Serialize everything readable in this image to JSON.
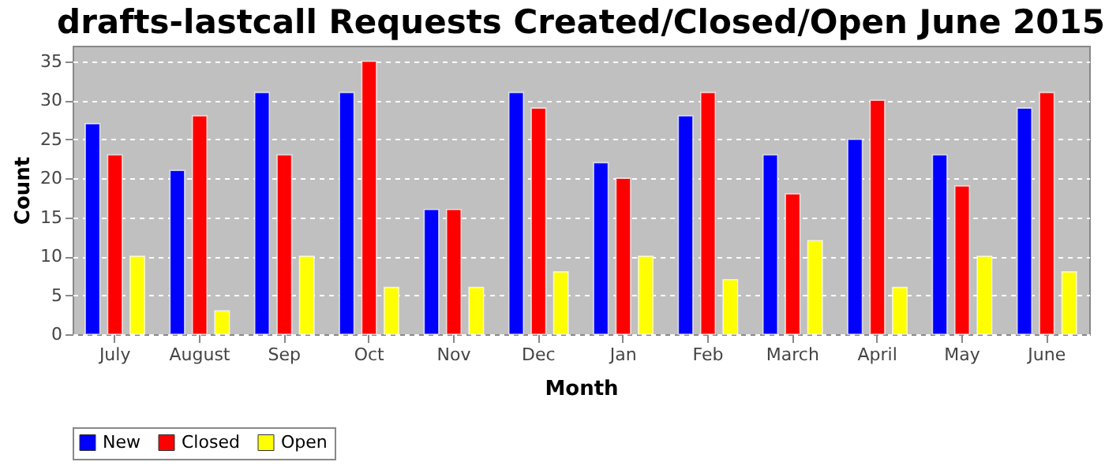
{
  "chart_data": {
    "type": "bar",
    "title": "drafts-lastcall Requests Created/Closed/Open June 2015",
    "xlabel": "Month",
    "ylabel": "Count",
    "categories": [
      "July",
      "August",
      "Sep",
      "Oct",
      "Nov",
      "Dec",
      "Jan",
      "Feb",
      "March",
      "April",
      "May",
      "June"
    ],
    "series": [
      {
        "name": "New",
        "color": "#0000ff",
        "values": [
          27,
          21,
          31,
          31,
          16,
          31,
          22,
          28,
          23,
          25,
          23,
          29
        ]
      },
      {
        "name": "Closed",
        "color": "#ff0000",
        "values": [
          23,
          28,
          23,
          35,
          16,
          29,
          20,
          31,
          18,
          30,
          19,
          31
        ]
      },
      {
        "name": "Open",
        "color": "#ffff00",
        "values": [
          10,
          3,
          10,
          6,
          6,
          8,
          10,
          7,
          12,
          6,
          10,
          8
        ]
      }
    ],
    "ylim": [
      0,
      37
    ],
    "yticks": [
      0,
      5,
      10,
      15,
      20,
      25,
      30,
      35
    ],
    "grid": "y",
    "legend": "bottom"
  }
}
